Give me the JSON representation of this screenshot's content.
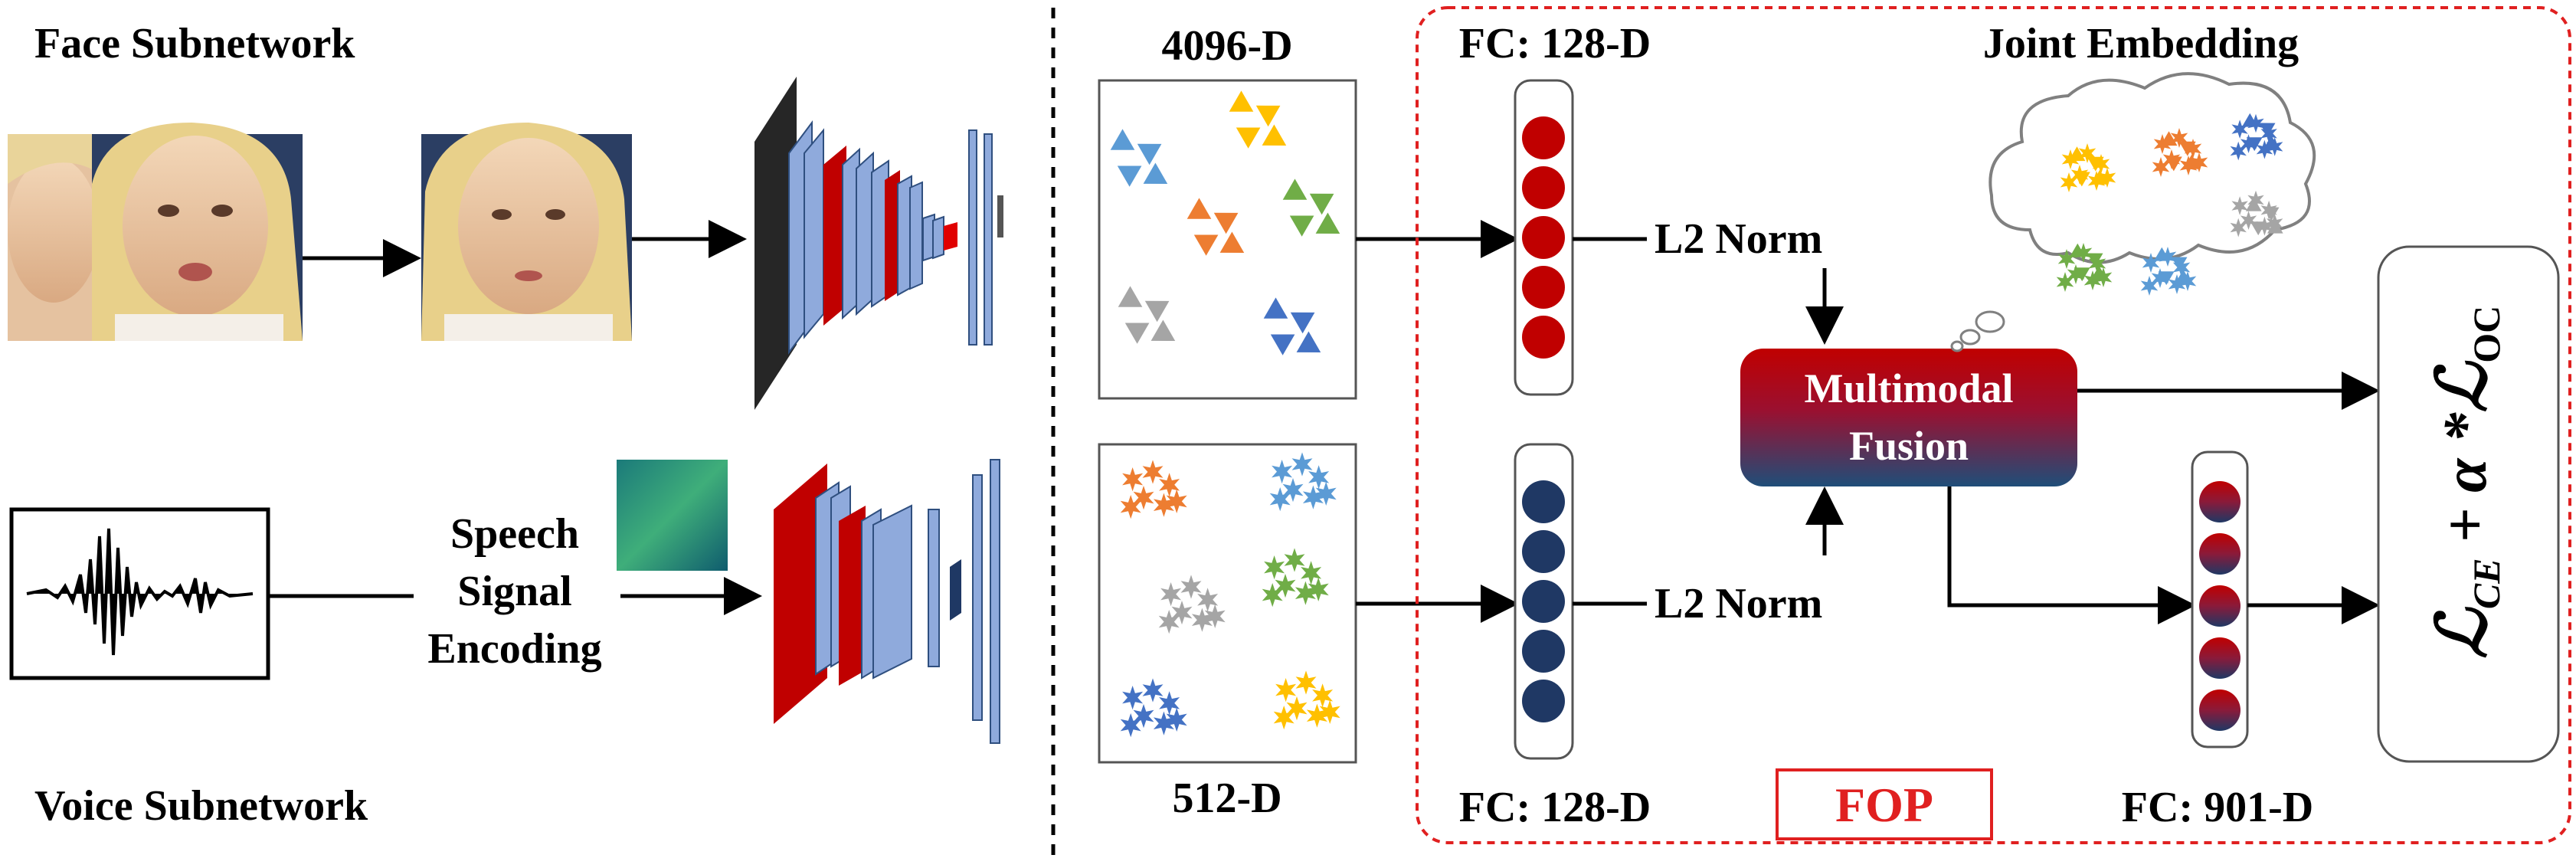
{
  "left_panel": {
    "face_title": "Face Subnetwork",
    "voice_title": "Voice Subnetwork",
    "speech_lines": [
      "Speech",
      "Signal",
      "Encoding"
    ]
  },
  "middle_panel": {
    "face_dim": "4096-D",
    "voice_dim": "512-D"
  },
  "fop_panel": {
    "fc_top": "FC: 128-D",
    "fc_bottom": "FC: 128-D",
    "fc_fused": "FC: 901-D",
    "joint_title": "Joint Embedding",
    "l2_top": "L2 Norm",
    "l2_bottom": "L2 Norm",
    "fusion_lines": [
      "Multimodal",
      "Fusion"
    ],
    "fop_label": "FOP",
    "loss_main": "ℒ",
    "loss_sub1": "CE",
    "loss_op": " + α *",
    "loss_sub2": "OC"
  },
  "colors": {
    "face_node": "#c00000",
    "voice_node": "#1f3864",
    "fop_border": "#e02020",
    "fusion_top": "#c00000",
    "fusion_bottom": "#1f4e79",
    "orange": "#ed7d31",
    "blue": "#4472c4",
    "lightblue": "#5b9bd5",
    "yellow": "#ffc000",
    "green": "#70ad47",
    "gray": "#a5a5a5",
    "cnn_blue": "#8faadc",
    "cnn_red": "#c00000",
    "cnn_dark": "#262626"
  },
  "icons": [
    "face-photo-icon",
    "waveform-icon",
    "spectrogram-icon",
    "triangle-cluster-icon",
    "star-cluster-icon",
    "thought-cloud-icon"
  ]
}
